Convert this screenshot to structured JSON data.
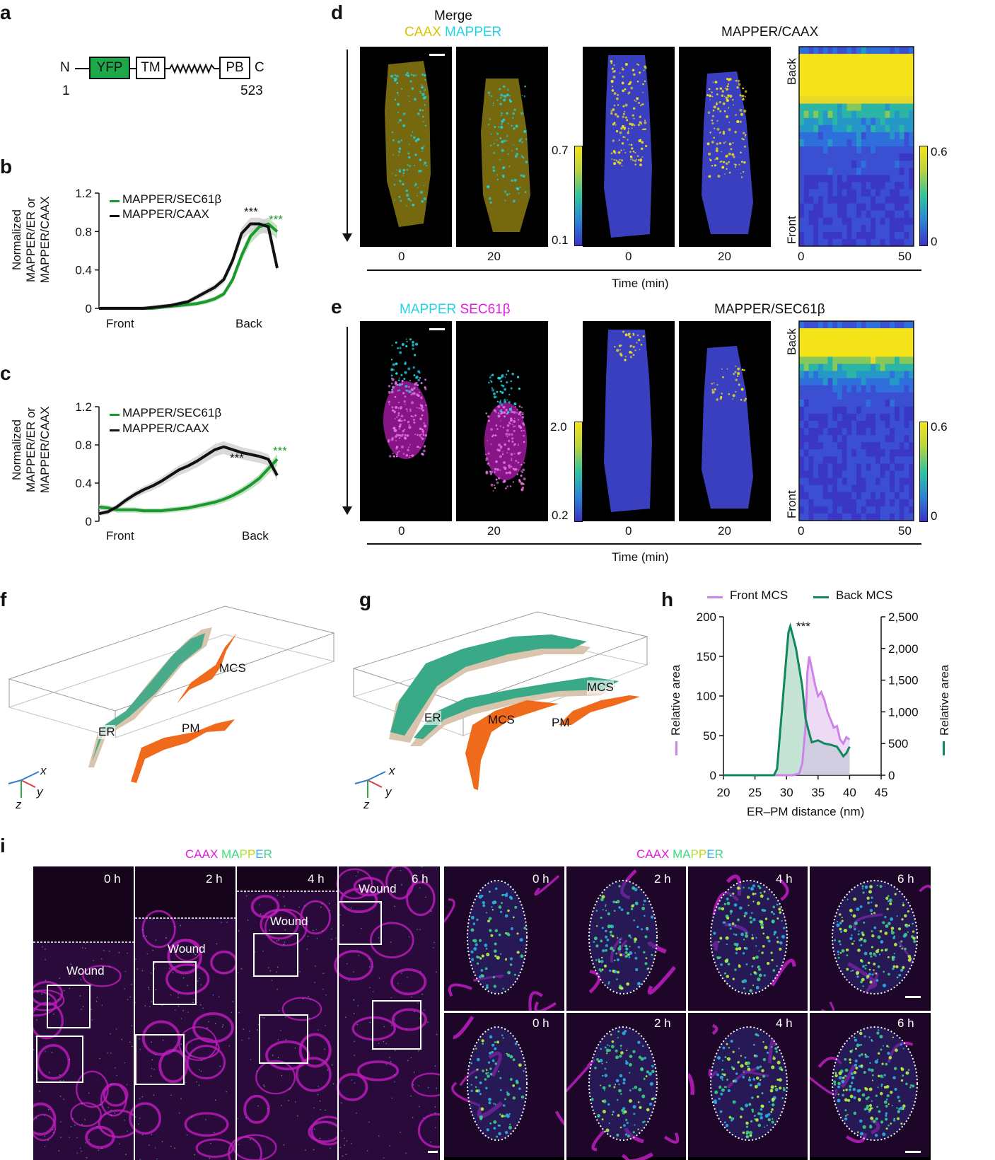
{
  "panels": {
    "a": "a",
    "b": "b",
    "c": "c",
    "d": "d",
    "e": "e",
    "f": "f",
    "g": "g",
    "h": "h",
    "i": "i"
  },
  "colors": {
    "green": "#1a9a2e",
    "yfp": "#1fa84a",
    "black": "#111111",
    "cyan": "#22d3e6",
    "yellow": "#d6c400",
    "magenta": "#e21ce0",
    "lilac": "#cf82e8",
    "teal": "#10875a",
    "orange": "#f06a1c",
    "erGreen": "#3aa987",
    "erBeige": "#d9c4ad",
    "cellBlue": "#3a3fbf"
  },
  "a": {
    "n": "N",
    "c": "C",
    "start": "1",
    "end": "523",
    "domains": [
      "YFP",
      "TM",
      "PB"
    ]
  },
  "b": {
    "legend1": "MAPPER/SEC61β",
    "legend2": "MAPPER/CAAX",
    "ylabel1": "Normalized",
    "ylabel2": "MAPPER/ER or",
    "ylabel3": "MAPPER/CAAX",
    "yticks": [
      "1.2",
      "0.8",
      "0.4",
      "0"
    ],
    "xfront": "Front",
    "xback": "Back",
    "sig_black": "***",
    "sig_green": "***"
  },
  "c": {
    "legend1": "MAPPER/SEC61β",
    "legend2": "MAPPER/CAAX",
    "ylabel1": "Normalized",
    "ylabel2": "MAPPER/ER or",
    "ylabel3": "MAPPER/CAAX",
    "yticks": [
      "1.2",
      "0.8",
      "0.4",
      "0"
    ],
    "xfront": "Front",
    "xback": "Back",
    "sig_black": "***",
    "sig_green": "***"
  },
  "d": {
    "merge": "Merge",
    "caax": "CAAX",
    "mapper": "MAPPER",
    "ratio_title": "MAPPER/CAAX",
    "times": [
      "0",
      "20",
      "0",
      "20"
    ],
    "cbar_max": "0.7",
    "cbar_min": "0.1",
    "kymo_max": "0.6",
    "kymo_min": "0",
    "kymo_x0": "0",
    "kymo_x1": "50",
    "back": "Back",
    "front": "Front",
    "xlabel": "Time (min)"
  },
  "e": {
    "mapper": "MAPPER",
    "sec": "SEC61β",
    "ratio_title": "MAPPER/SEC61β",
    "times": [
      "0",
      "20",
      "0",
      "20"
    ],
    "cbar_max": "2.0",
    "cbar_min": "0.2",
    "kymo_max": "0.6",
    "kymo_min": "0",
    "kymo_x0": "0",
    "kymo_x1": "50",
    "back": "Back",
    "front": "Front",
    "xlabel": "Time (min)"
  },
  "f": {
    "er": "ER",
    "pm": "PM",
    "mcs": "MCS",
    "ax_x": "x",
    "ax_y": "y",
    "ax_z": "z"
  },
  "g": {
    "er": "ER",
    "pm": "PM",
    "mcs1": "MCS",
    "mcs2": "MCS",
    "ax_x": "x",
    "ax_y": "y",
    "ax_z": "z"
  },
  "h": {
    "legend_front": "Front MCS",
    "legend_back": "Back MCS",
    "ylabel_left": "Relative area",
    "ylabel_right": "Relative area",
    "xlabel": "ER–PM distance (nm)",
    "sig": "***"
  },
  "i": {
    "caax": "CAAX",
    "mapper_letters": [
      "M",
      "A",
      "P",
      "P",
      "E",
      "R"
    ],
    "wound": "Wound",
    "times": [
      "0 h",
      "2 h",
      "4 h",
      "6 h"
    ]
  },
  "chart_data": [
    {
      "id": "b",
      "type": "line",
      "title": "",
      "xlabel": "Front → Back",
      "ylabel": "Normalized MAPPER/ER or MAPPER/CAAX",
      "ylim": [
        0,
        1.2
      ],
      "x": [
        0,
        1,
        2,
        3,
        4,
        5,
        6,
        7,
        8,
        9,
        10,
        11,
        12,
        13,
        14,
        15,
        16,
        17,
        18,
        19,
        20
      ],
      "series": [
        {
          "name": "MAPPER/SEC61β",
          "values": [
            0,
            0,
            0,
            0,
            0,
            0,
            0,
            0.01,
            0.02,
            0.03,
            0.04,
            0.05,
            0.07,
            0.1,
            0.15,
            0.3,
            0.55,
            0.75,
            0.85,
            0.88,
            0.8
          ]
        },
        {
          "name": "MAPPER/CAAX",
          "values": [
            0,
            0,
            0,
            0,
            0,
            0,
            0.01,
            0.02,
            0.03,
            0.05,
            0.07,
            0.12,
            0.17,
            0.22,
            0.3,
            0.5,
            0.78,
            0.88,
            0.88,
            0.85,
            0.42
          ]
        }
      ]
    },
    {
      "id": "c",
      "type": "line",
      "title": "",
      "xlabel": "Front → Back",
      "ylabel": "Normalized MAPPER/ER or MAPPER/CAAX",
      "ylim": [
        0,
        1.2
      ],
      "x": [
        0,
        1,
        2,
        3,
        4,
        5,
        6,
        7,
        8,
        9,
        10,
        11,
        12,
        13,
        14,
        15,
        16,
        17,
        18,
        19,
        20
      ],
      "series": [
        {
          "name": "MAPPER/SEC61β",
          "values": [
            0.15,
            0.14,
            0.12,
            0.12,
            0.12,
            0.11,
            0.11,
            0.11,
            0.12,
            0.13,
            0.14,
            0.16,
            0.18,
            0.2,
            0.23,
            0.27,
            0.32,
            0.38,
            0.45,
            0.55,
            0.65
          ]
        },
        {
          "name": "MAPPER/CAAX",
          "values": [
            0.08,
            0.1,
            0.15,
            0.22,
            0.28,
            0.33,
            0.37,
            0.42,
            0.48,
            0.54,
            0.58,
            0.63,
            0.69,
            0.75,
            0.78,
            0.75,
            0.72,
            0.7,
            0.68,
            0.65,
            0.48
          ]
        }
      ]
    },
    {
      "id": "h",
      "type": "area",
      "title": "",
      "xlabel": "ER–PM distance (nm)",
      "ylabel": "Relative area",
      "xlim": [
        20,
        45
      ],
      "xticks": [
        20,
        25,
        30,
        35,
        40,
        45
      ],
      "ylim_left": [
        0,
        200
      ],
      "yticks_left": [
        0,
        50,
        100,
        150,
        200
      ],
      "ylim_right": [
        0,
        2500
      ],
      "yticks_right": [
        0,
        500,
        1000,
        1500,
        2000,
        2500
      ],
      "ytick_labels_right": [
        "0",
        "500",
        "1,000",
        "1,500",
        "2,000",
        "2,500"
      ],
      "series": [
        {
          "name": "Front MCS",
          "axis": "left",
          "x": [
            20,
            24,
            28,
            31,
            32,
            32.5,
            33,
            33.3,
            33.6,
            34,
            34.5,
            35,
            35.5,
            36,
            36.5,
            37,
            37.5,
            38,
            38.5,
            39,
            39.5,
            40
          ],
          "values": [
            0,
            0,
            0,
            0,
            2,
            15,
            60,
            130,
            150,
            135,
            115,
            100,
            105,
            95,
            80,
            70,
            60,
            62,
            45,
            40,
            48,
            45
          ]
        },
        {
          "name": "Back MCS",
          "axis": "right",
          "x": [
            20,
            26,
            28,
            28.5,
            29,
            29.5,
            30,
            30.3,
            30.6,
            31,
            31.5,
            32,
            32.5,
            33,
            33.5,
            34,
            35,
            36,
            37,
            38,
            39,
            39.5,
            40
          ],
          "values": [
            0,
            0,
            0,
            100,
            700,
            1300,
            1900,
            2250,
            2350,
            2200,
            2000,
            1700,
            1400,
            900,
            700,
            520,
            550,
            500,
            480,
            450,
            300,
            350,
            450
          ]
        }
      ]
    }
  ]
}
